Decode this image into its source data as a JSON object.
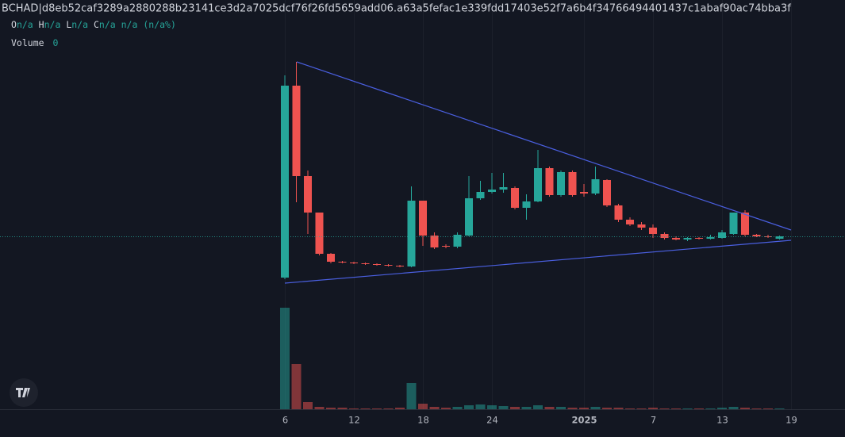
{
  "chart_data": {
    "type": "candlestick",
    "title": "BCHAD|d8eb52caf3289a2880288b23141ce3d2a7025dcf76f26fd5659add06.a63a5fefac1e339fdd17403e52f7a6b4f34766494401437c1abaf90ac74bba3f",
    "legend": {
      "o": "O",
      "o_val": "n/a",
      "h": "H",
      "h_val": "n/a",
      "l": "L",
      "l_val": "n/a",
      "c": "C",
      "c_val": "n/a",
      "chg": "n/a",
      "chg_pct": "(n/a%)"
    },
    "volume_label": "Volume",
    "volume_value": "0",
    "up_color": "#26a69a",
    "down_color": "#ef5350",
    "open": [
      50,
      292,
      178,
      132,
      80,
      70,
      69,
      68,
      67,
      66,
      65,
      64,
      147,
      103,
      90,
      89,
      103,
      150,
      158,
      161,
      163,
      138,
      146,
      188,
      154,
      183,
      158,
      156,
      173,
      141,
      123,
      117,
      113,
      105,
      100,
      98,
      100,
      99,
      100,
      105,
      132,
      104,
      102,
      99
    ],
    "high": [
      305,
      322,
      185,
      132,
      81,
      71,
      70,
      69,
      68,
      67,
      66,
      165,
      147,
      107,
      92,
      107,
      178,
      172,
      182,
      182,
      165,
      155,
      211,
      190,
      185,
      185,
      168,
      190,
      174,
      143,
      126,
      120,
      117,
      107,
      102,
      101,
      101,
      104,
      110,
      132,
      135,
      105,
      104,
      103
    ],
    "low": [
      48,
      145,
      105,
      78,
      68,
      68,
      67,
      66,
      65,
      64,
      63,
      63,
      90,
      86,
      87,
      87,
      102,
      148,
      156,
      157,
      136,
      123,
      145,
      152,
      152,
      152,
      152,
      154,
      139,
      120,
      115,
      110,
      100,
      98,
      97,
      96,
      98,
      98,
      99,
      104,
      102,
      101,
      100,
      98
    ],
    "close": [
      292,
      178,
      132,
      80,
      70,
      69,
      68,
      67,
      66,
      65,
      64,
      147,
      103,
      88,
      89,
      104,
      150,
      158,
      161,
      164,
      138,
      146,
      188,
      154,
      183,
      154,
      156,
      174,
      141,
      123,
      117,
      113,
      105,
      100,
      98,
      100,
      99,
      101,
      107,
      132,
      104,
      102,
      101,
      102
    ],
    "volume": [
      128,
      57,
      9,
      3,
      2,
      2,
      1,
      1,
      1,
      1,
      2,
      33,
      7,
      3,
      2,
      3,
      5,
      6,
      5,
      4,
      3,
      3,
      5,
      3,
      3,
      2,
      2,
      3,
      2,
      2,
      1,
      1,
      2,
      1,
      1,
      1,
      1,
      1,
      2,
      3,
      2,
      1,
      1,
      1
    ],
    "ylim": [
      20,
      400
    ],
    "vlim": [
      0,
      140
    ],
    "xlim": [
      0,
      44
    ],
    "xticks": [
      {
        "value": 0,
        "label": "6"
      },
      {
        "value": 6,
        "label": "12"
      },
      {
        "value": 12,
        "label": "18"
      },
      {
        "value": 18,
        "label": "24"
      },
      {
        "value": 26,
        "label": "2025"
      },
      {
        "value": 32,
        "label": "7"
      },
      {
        "value": 38,
        "label": "13"
      },
      {
        "value": 44,
        "label": "19"
      }
    ],
    "grid": true
  }
}
